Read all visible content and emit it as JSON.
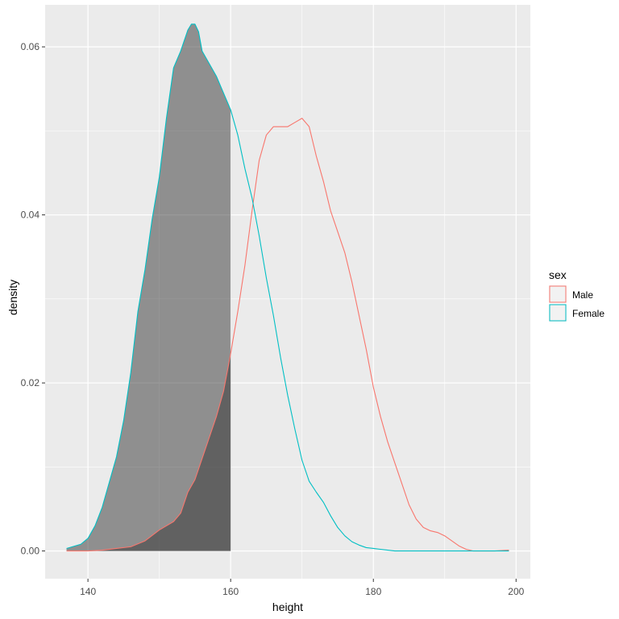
{
  "chart_data": {
    "type": "area",
    "xlabel": "height",
    "ylabel": "density",
    "xlim": [
      134,
      202
    ],
    "ylim": [
      -0.0033,
      0.065
    ],
    "x_ticks": [
      140,
      160,
      180,
      200
    ],
    "x_tick_labels": [
      "140",
      "160",
      "180",
      "200"
    ],
    "y_ticks": [
      0.0,
      0.02,
      0.04,
      0.06
    ],
    "y_tick_labels": [
      "0.00",
      "0.02",
      "0.04",
      "0.06"
    ],
    "grid": true,
    "legend": {
      "title": "sex",
      "position": "right",
      "entries": [
        "Male",
        "Female"
      ]
    },
    "shaded_region": {
      "x_max": 160
    },
    "series": [
      {
        "name": "Male",
        "color": "#F8766D",
        "x": [
          137,
          140,
          142,
          144,
          146,
          148,
          150,
          152,
          153,
          154,
          155,
          156,
          157,
          158,
          159,
          160,
          161,
          162,
          163,
          164,
          165,
          166,
          167,
          168,
          169,
          170,
          171,
          172,
          173,
          174,
          175,
          176,
          177,
          178,
          179,
          180,
          181,
          182,
          183,
          184,
          185,
          186,
          187,
          188,
          189,
          190,
          191,
          192,
          193,
          194,
          195,
          197,
          199
        ],
        "values": [
          0.0,
          0.0,
          0.0001,
          0.0003,
          0.0005,
          0.0012,
          0.0025,
          0.0035,
          0.0045,
          0.007,
          0.0085,
          0.011,
          0.0135,
          0.016,
          0.019,
          0.0235,
          0.0285,
          0.034,
          0.0405,
          0.0465,
          0.0495,
          0.0505,
          0.0505,
          0.0505,
          0.051,
          0.0515,
          0.0505,
          0.047,
          0.044,
          0.0405,
          0.038,
          0.0355,
          0.032,
          0.028,
          0.024,
          0.0195,
          0.016,
          0.013,
          0.0105,
          0.008,
          0.0055,
          0.0038,
          0.0028,
          0.0024,
          0.0022,
          0.0018,
          0.0012,
          0.0006,
          0.0002,
          0.0,
          0.0,
          0.0,
          0.0001
        ]
      },
      {
        "name": "Female",
        "color": "#00BFC4",
        "x": [
          137,
          139,
          140,
          141,
          142,
          143,
          144,
          145,
          146,
          147,
          148,
          149,
          150,
          151,
          152,
          153,
          154,
          154.5,
          155,
          155.5,
          156,
          157,
          158,
          159,
          160,
          161,
          162,
          163,
          164,
          165,
          166,
          167,
          168,
          169,
          170,
          171,
          172,
          173,
          174,
          175,
          176,
          177,
          178,
          179,
          180,
          181,
          182,
          183,
          185,
          190,
          195,
          199
        ],
        "values": [
          0.0003,
          0.0008,
          0.0015,
          0.003,
          0.0052,
          0.0082,
          0.0112,
          0.0155,
          0.0212,
          0.0285,
          0.0335,
          0.0395,
          0.0445,
          0.0515,
          0.0575,
          0.0595,
          0.062,
          0.0627,
          0.0627,
          0.0618,
          0.0595,
          0.058,
          0.0565,
          0.0545,
          0.0525,
          0.0495,
          0.0455,
          0.042,
          0.0375,
          0.0325,
          0.028,
          0.023,
          0.0185,
          0.0145,
          0.0108,
          0.0083,
          0.007,
          0.0058,
          0.0042,
          0.0028,
          0.0018,
          0.0011,
          0.0007,
          0.0004,
          0.0003,
          0.0002,
          0.0001,
          0.0,
          0.0,
          0.0,
          0.0,
          0.0
        ]
      }
    ]
  }
}
